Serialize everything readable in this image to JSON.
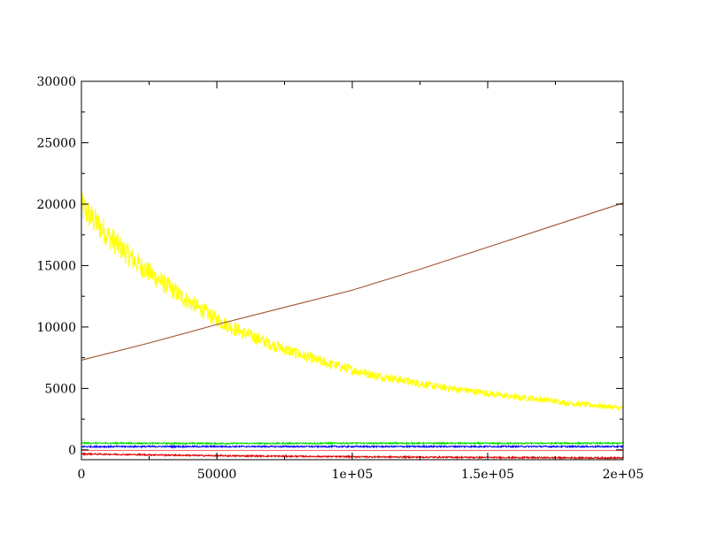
{
  "chart_data": {
    "type": "line",
    "title": "",
    "xlabel": "",
    "ylabel": "",
    "xlim": [
      0,
      200000
    ],
    "ylim": [
      -800,
      30000
    ],
    "x_ticks": [
      {
        "value": 0,
        "label": "0"
      },
      {
        "value": 50000,
        "label": "50000"
      },
      {
        "value": 100000,
        "label": "1e+05"
      },
      {
        "value": 150000,
        "label": "1.5e+05"
      },
      {
        "value": 200000,
        "label": "2e+05"
      }
    ],
    "y_ticks": [
      {
        "value": 0,
        "label": "0"
      },
      {
        "value": 5000,
        "label": "5000"
      },
      {
        "value": 10000,
        "label": "10000"
      },
      {
        "value": 15000,
        "label": "15000"
      },
      {
        "value": 20000,
        "label": "20000"
      },
      {
        "value": 25000,
        "label": "25000"
      },
      {
        "value": 30000,
        "label": "30000"
      }
    ],
    "grid": false,
    "legend": "none",
    "series": [
      {
        "color": "#ffff00",
        "noisy": true,
        "x": [
          0,
          10000,
          20000,
          30000,
          40000,
          50000,
          60000,
          70000,
          80000,
          90000,
          100000,
          110000,
          120000,
          130000,
          140000,
          150000,
          160000,
          170000,
          180000,
          190000,
          200000
        ],
        "y": [
          19800,
          17400,
          15300,
          13600,
          12000,
          10600,
          9500,
          8600,
          7800,
          7100,
          6500,
          6000,
          5600,
          5200,
          4900,
          4600,
          4300,
          4100,
          3800,
          3600,
          3400
        ]
      },
      {
        "color": "#a0522d",
        "noisy": false,
        "x": [
          0,
          25000,
          50000,
          75000,
          100000,
          125000,
          150000,
          175000,
          200000
        ],
        "y": [
          7300,
          8700,
          10200,
          11600,
          13000,
          14700,
          16500,
          18300,
          20100
        ]
      },
      {
        "color": "#00dd00",
        "noisy": true,
        "x": [
          0,
          50000,
          100000,
          150000,
          200000
        ],
        "y": [
          550,
          520,
          540,
          530,
          540
        ]
      },
      {
        "color": "#0000ff",
        "noisy": true,
        "x": [
          0,
          50000,
          100000,
          150000,
          200000
        ],
        "y": [
          260,
          270,
          265,
          270,
          265
        ]
      },
      {
        "color": "#ff6a6a",
        "noisy": false,
        "x": [
          0,
          200000
        ],
        "y": [
          -50,
          -50
        ]
      },
      {
        "color": "#dd0000",
        "noisy": true,
        "x": [
          0,
          50000,
          100000,
          150000,
          200000
        ],
        "y": [
          -330,
          -480,
          -560,
          -620,
          -660
        ]
      }
    ]
  }
}
